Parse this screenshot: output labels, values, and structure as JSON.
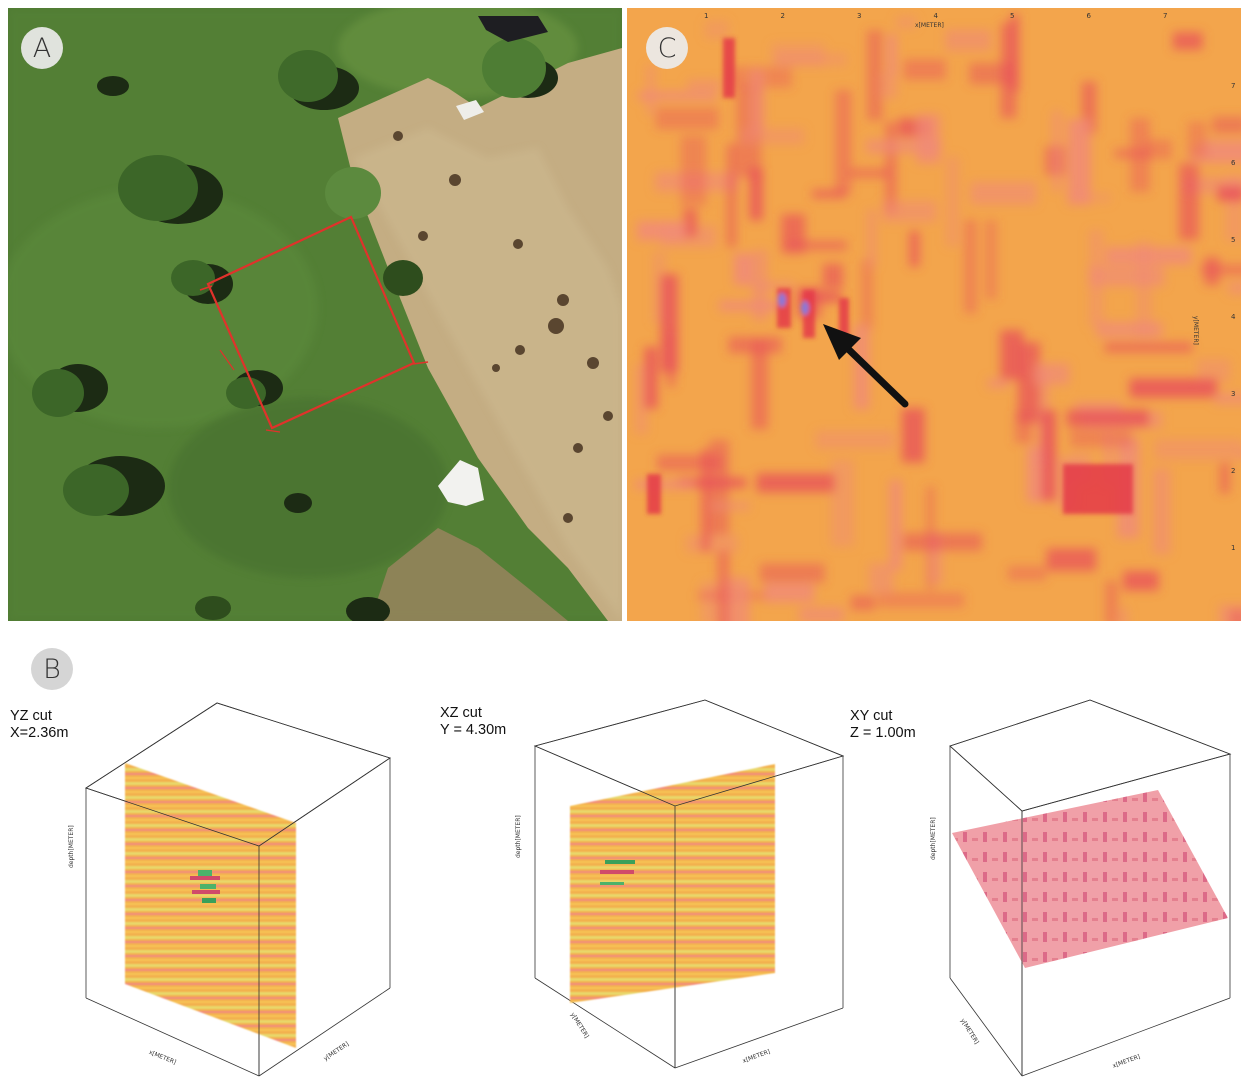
{
  "panels": {
    "a": {
      "label": "A"
    },
    "c": {
      "label": "C",
      "x_axis_label": "x[METER]",
      "y_axis_label": "y[METER]",
      "x_ticks": [
        "1",
        "2",
        "3",
        "4",
        "5",
        "6",
        "7"
      ],
      "y_ticks": [
        "7",
        "6",
        "5",
        "4",
        "3",
        "2",
        "1"
      ]
    },
    "b": {
      "label": "B",
      "cuts": [
        {
          "title": "YZ cut",
          "value": "X=2.36m",
          "depth_label": "depth[METER]",
          "x_label": "x[METER]",
          "y_label": "y[METER]"
        },
        {
          "title": "XZ cut",
          "value": "Y = 4.30m",
          "depth_label": "depth[METER]",
          "x_label": "x[METER]",
          "y_label": "y[METER]"
        },
        {
          "title": "XY cut",
          "value": "Z = 1.00m",
          "depth_label": "depth[METER]",
          "x_label": "x[METER]",
          "y_label": "y[METER]"
        }
      ]
    }
  },
  "colors": {
    "grass": "#4f7a33",
    "excavation": "#c9b48c",
    "survey_outline": "#e0322b",
    "radar_base": "#f3a54c",
    "radar_anomaly": "#e8525a",
    "arrow": "#111111"
  }
}
